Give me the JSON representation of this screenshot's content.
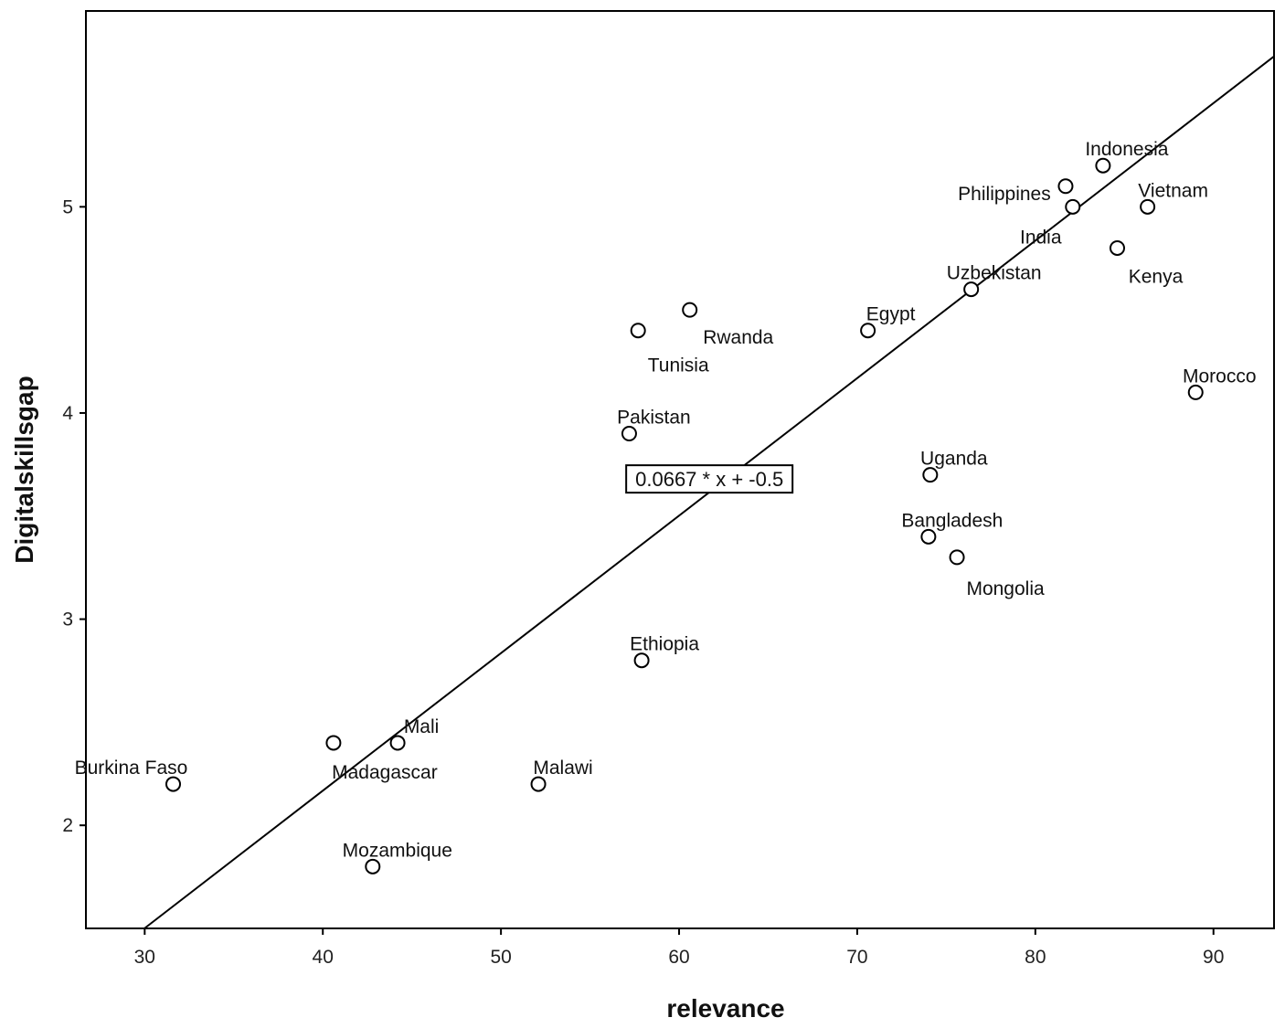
{
  "chart_data": {
    "type": "scatter",
    "title": "",
    "xlabel": "relevance",
    "ylabel": "Digitalskillsgap",
    "xlim": [
      26.7,
      93.4
    ],
    "ylim": [
      1.5,
      5.95
    ],
    "xticks": [
      "30",
      "40",
      "50",
      "60",
      "70",
      "80",
      "90"
    ],
    "yticks": [
      "2",
      "3",
      "4",
      "5"
    ],
    "grid": false,
    "legend": "none",
    "point_color": "#000000",
    "fit_line": {
      "slope": 0.0667,
      "intercept": -0.5,
      "label": "0.0667 * x + -0.5",
      "label_anchor": [
        61.7,
        3.68
      ]
    },
    "points": [
      {
        "label": "Burkina Faso",
        "x": 31.6,
        "y": 2.2
      },
      {
        "label": "Madagascar",
        "x": 40.6,
        "y": 2.4
      },
      {
        "label": "Mali",
        "x": 44.2,
        "y": 2.4
      },
      {
        "label": "Mozambique",
        "x": 42.8,
        "y": 1.8
      },
      {
        "label": "Malawi",
        "x": 52.1,
        "y": 2.2
      },
      {
        "label": "Ethiopia",
        "x": 57.9,
        "y": 2.8
      },
      {
        "label": "Pakistan",
        "x": 57.2,
        "y": 3.9
      },
      {
        "label": "Tunisia",
        "x": 57.7,
        "y": 4.4
      },
      {
        "label": "Rwanda",
        "x": 60.6,
        "y": 4.5
      },
      {
        "label": "Egypt",
        "x": 70.6,
        "y": 4.4
      },
      {
        "label": "Uzbekistan",
        "x": 76.4,
        "y": 4.6
      },
      {
        "label": "Uganda",
        "x": 74.1,
        "y": 3.7
      },
      {
        "label": "Bangladesh",
        "x": 74.0,
        "y": 3.4
      },
      {
        "label": "Mongolia",
        "x": 75.6,
        "y": 3.3
      },
      {
        "label": "Philippines",
        "x": 81.7,
        "y": 5.1
      },
      {
        "label": "India",
        "x": 82.1,
        "y": 5.0
      },
      {
        "label": "Indonesia",
        "x": 83.8,
        "y": 5.2
      },
      {
        "label": "Vietnam",
        "x": 86.3,
        "y": 5.0
      },
      {
        "label": "Kenya",
        "x": 84.6,
        "y": 4.8
      },
      {
        "label": "Morocco",
        "x": 89.0,
        "y": 4.1
      }
    ]
  }
}
